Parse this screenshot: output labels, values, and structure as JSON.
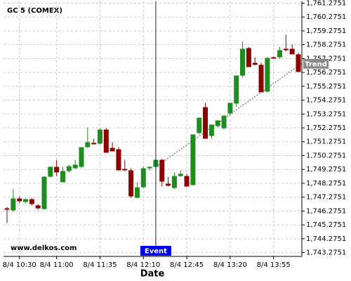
{
  "chart_data": {
    "type": "candlestick",
    "title": "GC 5 (COMEX)",
    "watermark": "www.delkos.com",
    "x_label": "Date",
    "categories": [
      null,
      null,
      "8/4 10:30",
      null,
      null,
      null,
      null,
      null,
      "8/4 11:00",
      null,
      null,
      null,
      null,
      null,
      null,
      "8/4 11:35",
      null,
      null,
      null,
      null,
      null,
      null,
      "8/4 12:10",
      null,
      null,
      null,
      null,
      null,
      null,
      "8/4 12:45",
      null,
      null,
      null,
      null,
      null,
      null,
      "8/4 13:20",
      null,
      null,
      null,
      null,
      null,
      null,
      "8/4 13:55",
      null,
      null,
      null,
      null
    ],
    "open": [
      1746.47,
      1746.32,
      1747.18,
      1746.93,
      1747.13,
      1746.68,
      1746.42,
      1748.75,
      1749.46,
      1748.35,
      1749.16,
      1749.36,
      1749.46,
      1750.88,
      1751.19,
      1751.14,
      1752.15,
      1750.83,
      1750.73,
      1749.31,
      1749.21,
      1747.23,
      1747.99,
      1749.36,
      1749.46,
      1749.97,
      1748.25,
      1747.94,
      1748.8,
      1748.8,
      1748.15,
      1751.9,
      1753.77,
      1751.69,
      1752.4,
      1752.25,
      1753.32,
      1754.03,
      1756.05,
      1758.03,
      1756.97,
      1756.82,
      1754.89,
      1757.37,
      1757.37,
      1757.98,
      1757.98,
      1757.58
    ],
    "high": [
      1746.57,
      1747.84,
      1747.33,
      1747.18,
      1747.23,
      1746.78,
      1748.8,
      1749.51,
      1749.97,
      1749.46,
      1749.62,
      1749.97,
      1750.88,
      1752.3,
      1751.49,
      1752.25,
      1752.25,
      1751.24,
      1750.88,
      1749.97,
      1749.36,
      1748.35,
      1749.46,
      1749.51,
      1749.97,
      1750.03,
      1748.75,
      1749.06,
      1749.21,
      1748.96,
      1751.8,
      1753.01,
      1754.08,
      1752.51,
      1752.81,
      1753.16,
      1754.08,
      1756.05,
      1758.5,
      1758.1,
      1757.37,
      1756.97,
      1757.37,
      1757.42,
      1758.1,
      1759.0,
      1758.3,
      1757.7
    ],
    "low": [
      1745.41,
      1746.22,
      1746.83,
      1746.83,
      1746.68,
      1746.37,
      1746.37,
      1748.7,
      1748.8,
      1748.35,
      1749.06,
      1749.31,
      1749.36,
      1750.83,
      1751.09,
      1751.09,
      1750.48,
      1750.58,
      1749.21,
      1749.16,
      1747.23,
      1747.18,
      1747.94,
      1749.21,
      1749.36,
      1748.04,
      1748.04,
      1747.84,
      1748.75,
      1748.04,
      1748.1,
      1751.8,
      1751.49,
      1751.49,
      1752.3,
      1752.15,
      1753.16,
      1753.77,
      1755.9,
      1756.66,
      1756.82,
      1754.84,
      1754.84,
      1757.27,
      1757.27,
      1757.8,
      1757.58,
      1756.31
    ],
    "close": [
      1746.37,
      1747.18,
      1746.98,
      1747.13,
      1746.78,
      1746.47,
      1748.75,
      1749.46,
      1749.06,
      1749.16,
      1749.51,
      1749.62,
      1750.88,
      1751.24,
      1751.09,
      1752.15,
      1750.48,
      1750.58,
      1749.21,
      1749.21,
      1747.33,
      1747.99,
      1749.36,
      1749.46,
      1749.97,
      1748.4,
      1748.1,
      1748.8,
      1748.96,
      1748.04,
      1751.8,
      1753.01,
      1751.49,
      1752.51,
      1752.81,
      1753.16,
      1754.08,
      1756.05,
      1757.98,
      1756.66,
      1756.82,
      1754.84,
      1757.32,
      1757.27,
      1757.88,
      1757.88,
      1757.58,
      1756.31
    ],
    "up_color": "#1e8c1e",
    "down_color": "#8b0000",
    "ylim": [
      1743.0,
      1761.4
    ],
    "yticks": [
      {
        "value": 1743.2751,
        "label": "1,743.2751"
      },
      {
        "value": 1744.2751,
        "label": "1,744.2751"
      },
      {
        "value": 1745.2751,
        "label": "1,745.2751"
      },
      {
        "value": 1746.2751,
        "label": "1,746.2751"
      },
      {
        "value": 1747.2751,
        "label": "1,747.2751"
      },
      {
        "value": 1748.2751,
        "label": "1,748.2751"
      },
      {
        "value": 1749.2751,
        "label": "1,749.2751"
      },
      {
        "value": 1750.2751,
        "label": "1,750.2751"
      },
      {
        "value": 1751.2751,
        "label": "1,751.2751"
      },
      {
        "value": 1752.2751,
        "label": "1,752.2751"
      },
      {
        "value": 1753.2751,
        "label": "1,753.2751"
      },
      {
        "value": 1754.2751,
        "label": "1,754.2751"
      },
      {
        "value": 1755.2751,
        "label": "1,755.2751"
      },
      {
        "value": 1756.2751,
        "label": "1,756.2751"
      },
      {
        "value": 1757.2751,
        "label": "1,757.2751"
      },
      {
        "value": 1758.2751,
        "label": "1,758.2751"
      },
      {
        "value": 1759.2751,
        "label": "1,759.2751"
      },
      {
        "value": 1760.2751,
        "label": "1,760.2751"
      },
      {
        "value": 1761.2751,
        "label": "1,761.2751"
      }
    ],
    "grid": true,
    "event": {
      "label": "Event",
      "index": 24
    },
    "trend": {
      "label": "Trend",
      "x": [
        24,
        47.5
      ],
      "values": [
        1749.46,
        1756.9
      ]
    }
  }
}
